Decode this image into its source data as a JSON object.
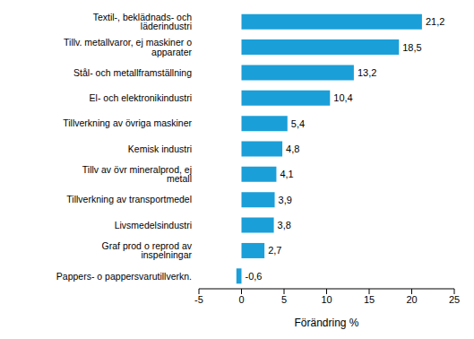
{
  "chart_data": {
    "type": "bar",
    "orientation": "horizontal",
    "xlabel": "Förändring %",
    "categories": [
      "Textil-, beklädnads- och läderindustri",
      "Tillv. metallvaror, ej maskiner o apparater",
      "Stål- och metallframställning",
      "El- och elektronikindustri",
      "Tillverkning av övriga maskiner",
      "Kemisk industri",
      "Tillv av övr mineralprod, ej metall",
      "Tillverkning av transportmedel",
      "Livsmedelsindustri",
      "Graf prod o reprod av inspelningar",
      "Pappers- o pappersvarutillverkn."
    ],
    "values": [
      21.2,
      18.5,
      13.2,
      10.4,
      5.4,
      4.8,
      4.1,
      3.9,
      3.8,
      2.7,
      -0.6
    ],
    "value_labels": [
      "21,2",
      "18,5",
      "13,2",
      "10,4",
      "5,4",
      "4,8",
      "4,1",
      "3,9",
      "3,8",
      "2,7",
      "-0,6"
    ],
    "data_labels": true,
    "color": "#1b9fd8",
    "xlim": [
      -5,
      25
    ],
    "xticks": [
      -5,
      0,
      5,
      10,
      15,
      20,
      25
    ],
    "grid": false
  }
}
